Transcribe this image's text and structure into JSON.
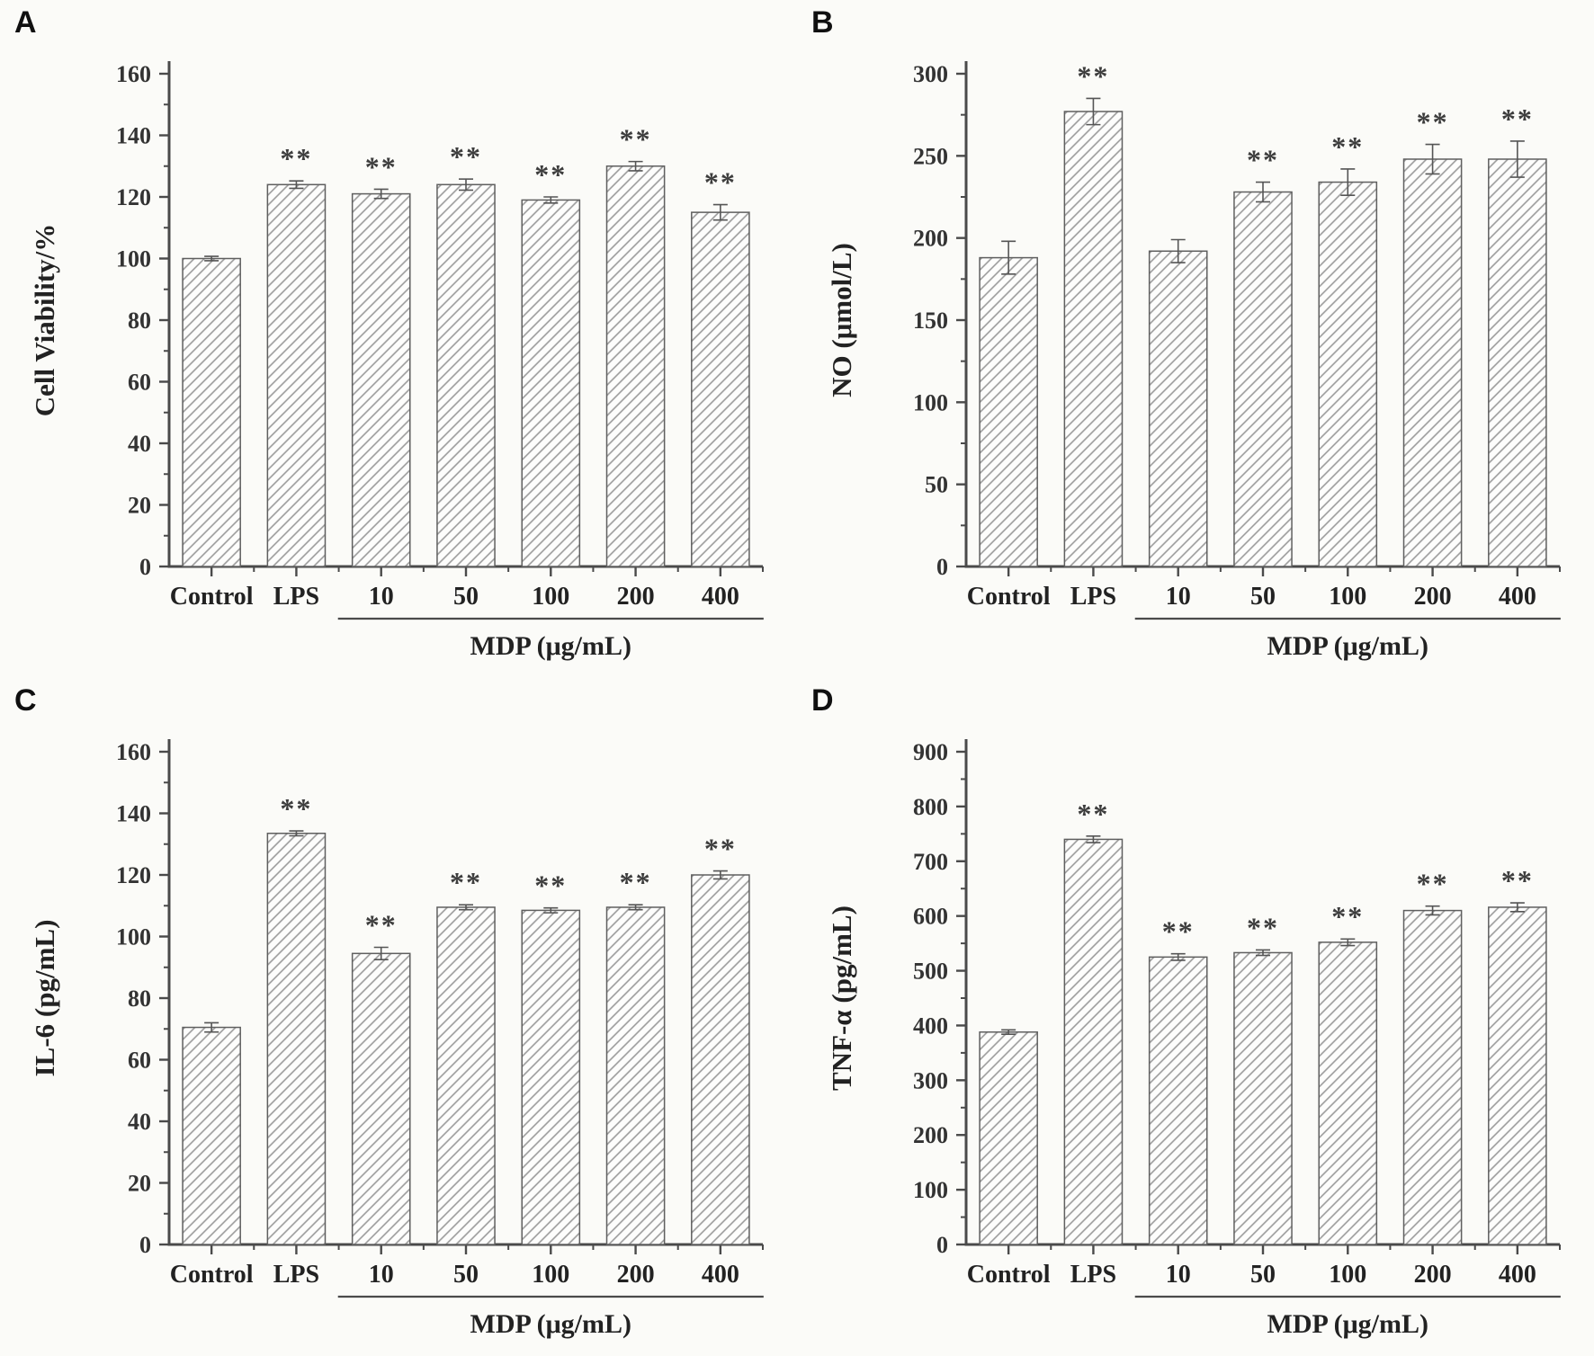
{
  "figure_title": "",
  "sig_symbol": "**",
  "chart_data": [
    {
      "type": "bar",
      "panel_label": "A",
      "ylabel": "Cell Viability/%",
      "xlabel": "",
      "ylim": [
        0,
        160
      ],
      "ytick_step": 20,
      "yticks": [
        0,
        20,
        40,
        60,
        80,
        100,
        120,
        140,
        160
      ],
      "categories": [
        "Control",
        "LPS",
        "10",
        "50",
        "100",
        "200",
        "400"
      ],
      "values": [
        100,
        124,
        121,
        124,
        119,
        130,
        115
      ],
      "errors": [
        0.7,
        1.2,
        1.5,
        1.8,
        1.0,
        1.5,
        2.5
      ],
      "sig": [
        "",
        "**",
        "**",
        "**",
        "**",
        "**",
        "**"
      ],
      "group_label": "MDP (μg/mL)",
      "group_span": [
        2,
        6
      ],
      "legend": null,
      "grid": false
    },
    {
      "type": "bar",
      "panel_label": "B",
      "ylabel": "NO (μmol/L)",
      "xlabel": "",
      "ylim": [
        0,
        300
      ],
      "ytick_step": 50,
      "yticks": [
        0,
        50,
        100,
        150,
        200,
        250,
        300
      ],
      "categories": [
        "Control",
        "LPS",
        "10",
        "50",
        "100",
        "200",
        "400"
      ],
      "values": [
        188,
        277,
        192,
        228,
        234,
        248,
        248
      ],
      "errors": [
        10,
        8,
        7,
        6,
        8,
        9,
        11
      ],
      "sig": [
        "",
        "**",
        "",
        "**",
        "**",
        "**",
        "**"
      ],
      "group_label": "MDP (μg/mL)",
      "group_span": [
        2,
        6
      ],
      "legend": null,
      "grid": false
    },
    {
      "type": "bar",
      "panel_label": "C",
      "ylabel": "IL-6 (pg/mL)",
      "xlabel": "",
      "ylim": [
        0,
        160
      ],
      "ytick_step": 20,
      "yticks": [
        0,
        20,
        40,
        60,
        80,
        100,
        120,
        140,
        160
      ],
      "categories": [
        "Control",
        "LPS",
        "10",
        "50",
        "100",
        "200",
        "400"
      ],
      "values": [
        70.5,
        133.5,
        94.5,
        109.5,
        108.5,
        109.5,
        120
      ],
      "errors": [
        1.5,
        0.8,
        2.0,
        0.8,
        0.8,
        0.8,
        1.3
      ],
      "sig": [
        "",
        "**",
        "**",
        "**",
        "**",
        "**",
        "**"
      ],
      "group_label": "MDP (μg/mL)",
      "group_span": [
        2,
        6
      ],
      "legend": null,
      "grid": false
    },
    {
      "type": "bar",
      "panel_label": "D",
      "ylabel": "TNF-α (pg/mL)",
      "xlabel": "",
      "ylim": [
        0,
        900
      ],
      "ytick_step": 100,
      "yticks": [
        0,
        100,
        200,
        300,
        400,
        500,
        600,
        700,
        800,
        900
      ],
      "categories": [
        "Control",
        "LPS",
        "10",
        "50",
        "100",
        "200",
        "400"
      ],
      "values": [
        388,
        740,
        525,
        533,
        552,
        610,
        616
      ],
      "errors": [
        4,
        6,
        6,
        5,
        6,
        8,
        8
      ],
      "sig": [
        "",
        "**",
        "**",
        "**",
        "**",
        "**",
        "**"
      ],
      "group_label": "MDP (μg/mL)",
      "group_span": [
        2,
        6
      ],
      "legend": null,
      "grid": false
    }
  ],
  "style": {
    "background": "#fbfbf8",
    "axis_color": "#4a4a4a",
    "tick_text_color": "#333333",
    "label_text_color": "#222222",
    "hatch_color": "#9a9a9a",
    "bar_fill": "#fdfdfc",
    "bar_stroke": "#5f5f5f",
    "error_color": "#555555",
    "sig_color": "#3d3d3d"
  }
}
